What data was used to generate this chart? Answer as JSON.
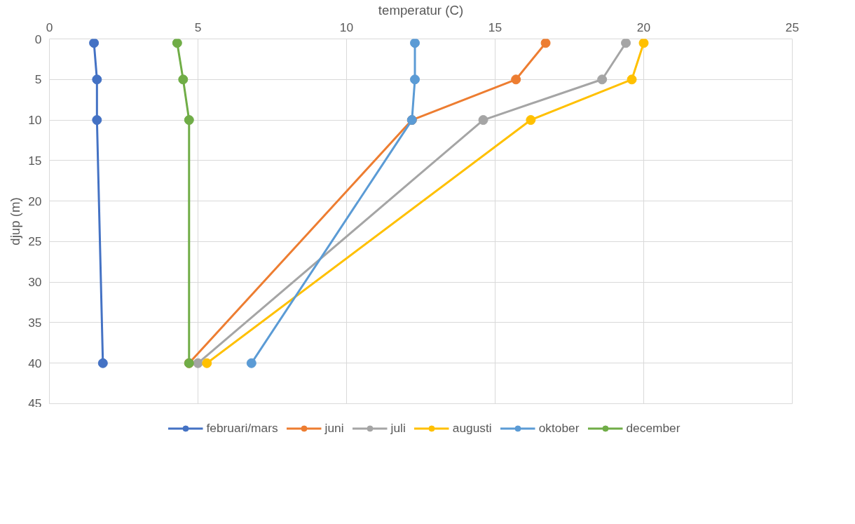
{
  "chart_data": {
    "type": "line",
    "xlabel": "temperatur (C)",
    "ylabel": "djup (m)",
    "xlim": [
      0,
      25
    ],
    "xticks": [
      0,
      5,
      10,
      15,
      20,
      25
    ],
    "ylim": [
      45,
      0
    ],
    "yticks": [
      0,
      5,
      10,
      15,
      20,
      25,
      30,
      35,
      40,
      45
    ],
    "grid": true,
    "legend": "bottom",
    "marker": "circle",
    "line_style": "solid",
    "series": [
      {
        "name": "februari/mars",
        "color": "#4472c4",
        "x": [
          1.5,
          1.6,
          1.6,
          1.8
        ],
        "values": [
          0.5,
          5,
          10,
          40
        ]
      },
      {
        "name": "juni",
        "color": "#ed7d31",
        "x": [
          16.7,
          15.7,
          12.2,
          4.7
        ],
        "values": [
          0.5,
          5,
          10,
          40
        ]
      },
      {
        "name": "juli",
        "color": "#a5a5a5",
        "x": [
          19.4,
          18.6,
          14.6,
          5.0
        ],
        "values": [
          0.5,
          5,
          10,
          40
        ]
      },
      {
        "name": "augusti",
        "color": "#ffc000",
        "x": [
          20.0,
          19.6,
          16.2,
          5.3
        ],
        "values": [
          0.5,
          5,
          10,
          40
        ]
      },
      {
        "name": "oktober",
        "color": "#5b9bd5",
        "x": [
          12.3,
          12.3,
          12.2,
          6.8
        ],
        "values": [
          0.5,
          5,
          10,
          40
        ]
      },
      {
        "name": "december",
        "color": "#70ad47",
        "x": [
          4.3,
          4.5,
          4.7,
          4.7
        ],
        "values": [
          0.5,
          5,
          10,
          40
        ]
      }
    ]
  }
}
